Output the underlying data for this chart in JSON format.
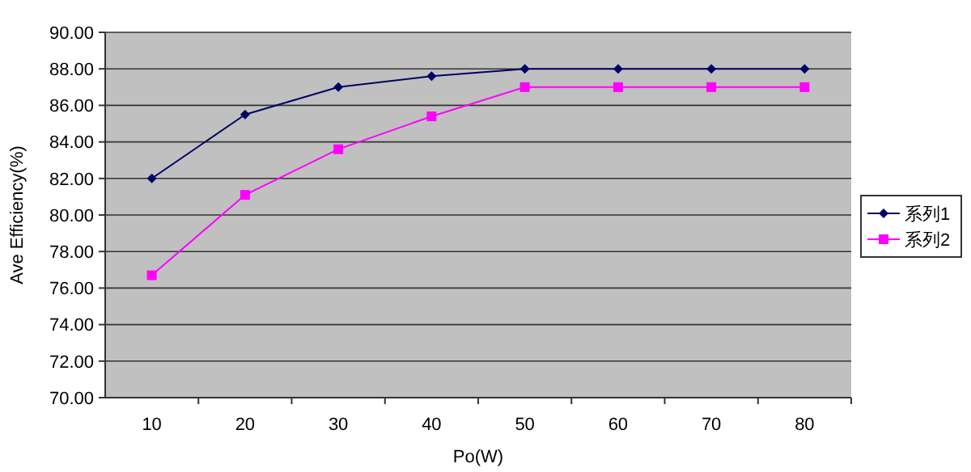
{
  "chart_data": {
    "type": "line",
    "xlabel": "Po(W)",
    "ylabel": "Ave Efficiency(%)",
    "categories": [
      "10",
      "20",
      "30",
      "40",
      "50",
      "60",
      "70",
      "80"
    ],
    "series": [
      {
        "name": "系列1",
        "color": "#000066",
        "marker": "diamond",
        "values": [
          82,
          85.5,
          87,
          87.6,
          88,
          88,
          88,
          88
        ]
      },
      {
        "name": "系列2",
        "color": "#ff00ff",
        "marker": "square",
        "values": [
          76.7,
          81.1,
          83.6,
          85.4,
          87,
          87,
          87,
          87
        ]
      }
    ],
    "ylim": [
      70,
      90
    ],
    "yticks": [
      {
        "value": 70,
        "label": "70.00"
      },
      {
        "value": 72,
        "label": "72.00"
      },
      {
        "value": 74,
        "label": "74.00"
      },
      {
        "value": 76,
        "label": "76.00"
      },
      {
        "value": 78,
        "label": "78.00"
      },
      {
        "value": 80,
        "label": "80.00"
      },
      {
        "value": 82,
        "label": "82.00"
      },
      {
        "value": 84,
        "label": "84.00"
      },
      {
        "value": 86,
        "label": "86.00"
      },
      {
        "value": 88,
        "label": "88.00"
      },
      {
        "value": 90,
        "label": "90.00"
      }
    ],
    "grid": "y",
    "legend": "right",
    "line_style": "solid"
  }
}
